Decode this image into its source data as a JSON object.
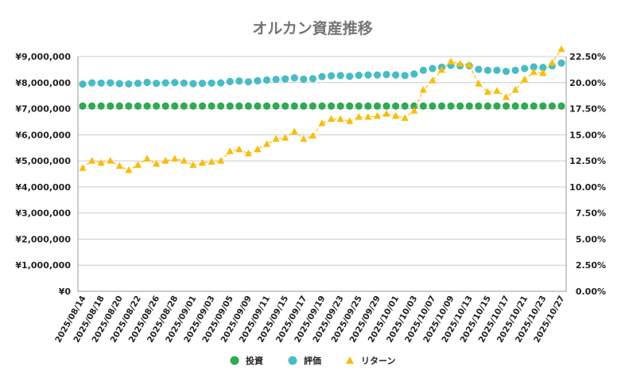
{
  "chart_data": {
    "type": "line",
    "title": "オルカン資産推移",
    "left_axis": {
      "min": 0,
      "max": 9000000,
      "step": 1000000,
      "tick_labels": [
        "¥0",
        "¥1,000,000",
        "¥2,000,000",
        "¥3,000,000",
        "¥4,000,000",
        "¥5,000,000",
        "¥6,000,000",
        "¥7,000,000",
        "¥8,000,000",
        "¥9,000,000"
      ]
    },
    "right_axis": {
      "min": 0,
      "max": 22.5,
      "step": 2.5,
      "tick_labels": [
        "0.00%",
        "2.50%",
        "5.00%",
        "7.50%",
        "10.00%",
        "12.50%",
        "15.00%",
        "17.50%",
        "20.00%",
        "22.50%"
      ]
    },
    "x": [
      "2025/08/14",
      "2025/08/15",
      "2025/08/18",
      "2025/08/19",
      "2025/08/20",
      "2025/08/21",
      "2025/08/22",
      "2025/08/25",
      "2025/08/26",
      "2025/08/27",
      "2025/08/28",
      "2025/08/29",
      "2025/09/01",
      "2025/09/02",
      "2025/09/03",
      "2025/09/04",
      "2025/09/05",
      "2025/09/08",
      "2025/09/09",
      "2025/09/10",
      "2025/09/11",
      "2025/09/12",
      "2025/09/15",
      "2025/09/16",
      "2025/09/17",
      "2025/09/18",
      "2025/09/19",
      "2025/09/22",
      "2025/09/23",
      "2025/09/24",
      "2025/09/25",
      "2025/09/26",
      "2025/09/29",
      "2025/09/30",
      "2025/10/01",
      "2025/10/02",
      "2025/10/03",
      "2025/10/06",
      "2025/10/07",
      "2025/10/08",
      "2025/10/09",
      "2025/10/10",
      "2025/10/13",
      "2025/10/14",
      "2025/10/15",
      "2025/10/16",
      "2025/10/17",
      "2025/10/20",
      "2025/10/21",
      "2025/10/22",
      "2025/10/23",
      "2025/10/24",
      "2025/10/27"
    ],
    "x_tick_labels": [
      "2025/08/14",
      "2025/08/18",
      "2025/08/20",
      "2025/08/22",
      "2025/08/26",
      "2025/08/28",
      "2025/09/01",
      "2025/09/03",
      "2025/09/05",
      "2025/09/09",
      "2025/09/11",
      "2025/09/15",
      "2025/09/17",
      "2025/09/19",
      "2025/09/23",
      "2025/09/25",
      "2025/09/29",
      "2025/10/01",
      "2025/10/03",
      "2025/10/07",
      "2025/10/09",
      "2025/10/13",
      "2025/10/15",
      "2025/10/17",
      "2025/10/21",
      "2025/10/23",
      "2025/10/27"
    ],
    "series": [
      {
        "name": "投資",
        "axis": "left",
        "color": "#2eaa4f",
        "marker": "circle",
        "values": [
          7100000,
          7100000,
          7100000,
          7100000,
          7100000,
          7100000,
          7100000,
          7100000,
          7100000,
          7100000,
          7100000,
          7100000,
          7100000,
          7100000,
          7100000,
          7100000,
          7100000,
          7100000,
          7100000,
          7100000,
          7100000,
          7100000,
          7100000,
          7100000,
          7100000,
          7100000,
          7100000,
          7100000,
          7100000,
          7100000,
          7100000,
          7100000,
          7100000,
          7100000,
          7100000,
          7100000,
          7100000,
          7100000,
          7100000,
          7100000,
          7100000,
          7100000,
          7100000,
          7100000,
          7100000,
          7100000,
          7100000,
          7100000,
          7100000,
          7100000,
          7100000,
          7100000,
          7100000
        ]
      },
      {
        "name": "評価",
        "axis": "left",
        "color": "#46bdc6",
        "marker": "circle",
        "values": [
          7940000,
          7990000,
          7980000,
          7990000,
          7960000,
          7950000,
          7970000,
          8010000,
          7970000,
          7990000,
          8000000,
          7980000,
          7960000,
          7970000,
          7980000,
          7990000,
          8040000,
          8060000,
          8030000,
          8070000,
          8100000,
          8120000,
          8140000,
          8180000,
          8130000,
          8150000,
          8230000,
          8260000,
          8270000,
          8240000,
          8280000,
          8290000,
          8290000,
          8310000,
          8290000,
          8270000,
          8330000,
          8470000,
          8540000,
          8590000,
          8660000,
          8640000,
          8640000,
          8510000,
          8470000,
          8470000,
          8430000,
          8470000,
          8540000,
          8600000,
          8580000,
          8640000,
          8750000
        ]
      },
      {
        "name": "リターン",
        "axis": "right",
        "color": "#fbbc04",
        "marker": "triangle",
        "values": [
          11.8,
          12.5,
          12.3,
          12.5,
          12.0,
          11.6,
          12.1,
          12.7,
          12.2,
          12.5,
          12.7,
          12.5,
          12.1,
          12.3,
          12.4,
          12.5,
          13.4,
          13.6,
          13.2,
          13.6,
          14.1,
          14.6,
          14.7,
          15.3,
          14.6,
          14.9,
          16.1,
          16.5,
          16.5,
          16.3,
          16.7,
          16.7,
          16.8,
          17.0,
          16.8,
          16.6,
          17.3,
          19.3,
          20.2,
          21.2,
          22.0,
          21.8,
          21.7,
          19.9,
          19.1,
          19.2,
          18.6,
          19.3,
          20.3,
          21.0,
          20.9,
          21.9,
          23.2
        ]
      }
    ],
    "legend": [
      "投資",
      "評価",
      "リターン"
    ],
    "legend_position": "bottom",
    "grid": true
  }
}
